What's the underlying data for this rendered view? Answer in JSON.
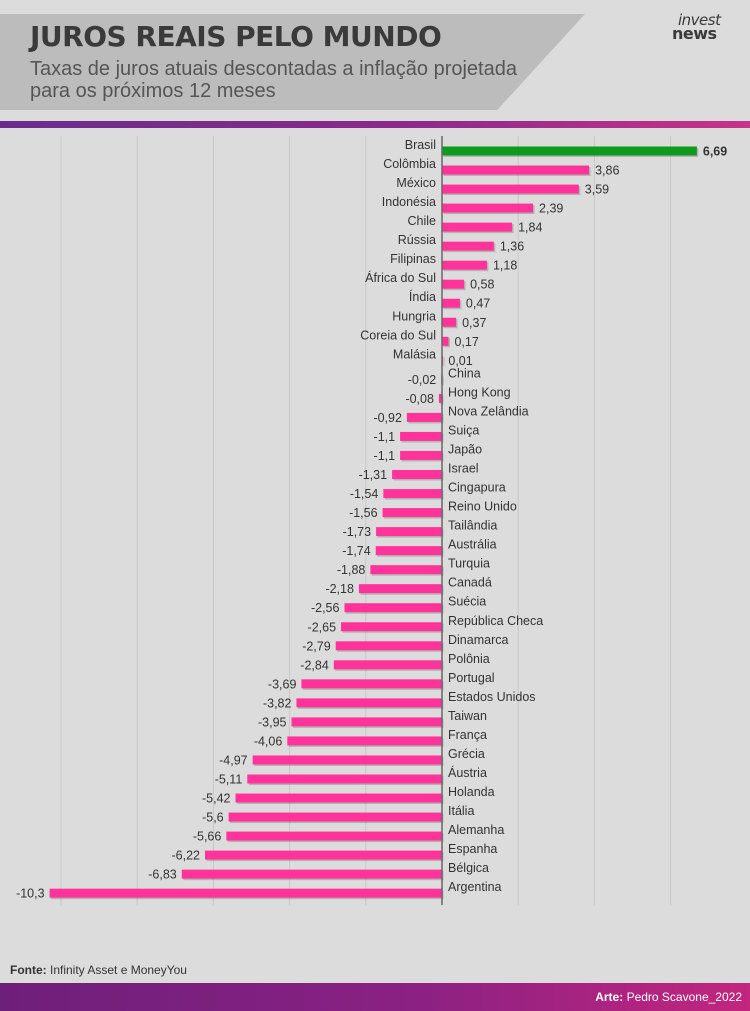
{
  "header": {
    "title": "JUROS REAIS PELO MUNDO",
    "subtitle": "Taxas de juros atuais descontadas a inflação projetada para os próximos 12 meses",
    "logo_top": "invest",
    "logo_bottom": "news"
  },
  "footer": {
    "source_label": "Fonte:",
    "source_text": "Infinity Asset e MoneyYou",
    "credit_label": "Arte:",
    "credit_text": "Pedro Scavone_2022"
  },
  "colors": {
    "highlight_bar": "#0f9a1f",
    "bar": "#ff3399",
    "axis": "#666666",
    "grid": "#c8c8c8",
    "label": "#333333"
  },
  "chart_data": {
    "type": "bar",
    "orientation": "horizontal",
    "title": "JUROS REAIS PELO MUNDO",
    "subtitle": "Taxas de juros atuais descontadas a inflação projetada para os próximos 12 meses",
    "xlabel": "",
    "ylabel": "",
    "xlim": [
      -10.3,
      6.69
    ],
    "grid": true,
    "highlight": "Brasil",
    "categories": [
      "Brasil",
      "Colômbia",
      "México",
      "Indonésia",
      "Chile",
      "Rússia",
      "Filipinas",
      "África do Sul",
      "Índia",
      "Hungria",
      "Coreia do Sul",
      "Malásia",
      "China",
      "Hong Kong",
      "Nova Zelândia",
      "Suiça",
      "Japão",
      "Israel",
      "Cingapura",
      "Reino Unido",
      "Tailândia",
      "Austrália",
      "Turquia",
      "Canadá",
      "Suécia",
      "República Checa",
      "Dinamarca",
      "Polônia",
      "Portugal",
      "Estados Unidos",
      "Taiwan",
      "França",
      "Grécia",
      "Áustria",
      "Holanda",
      "Itália",
      "Alemanha",
      "Espanha",
      "Bélgica",
      "Argentina"
    ],
    "values": [
      6.69,
      3.86,
      3.59,
      2.39,
      1.84,
      1.36,
      1.18,
      0.58,
      0.47,
      0.37,
      0.17,
      0.01,
      -0.02,
      -0.08,
      -0.92,
      -1.1,
      -1.1,
      -1.31,
      -1.54,
      -1.56,
      -1.73,
      -1.74,
      -1.88,
      -2.18,
      -2.56,
      -2.65,
      -2.79,
      -2.84,
      -3.69,
      -3.82,
      -3.95,
      -4.06,
      -4.97,
      -5.11,
      -5.42,
      -5.6,
      -5.66,
      -6.22,
      -6.83,
      -10.3
    ],
    "value_labels": [
      "6,69",
      "3,86",
      "3,59",
      "2,39",
      "1,84",
      "1,36",
      "1,18",
      "0,58",
      "0,47",
      "0,37",
      "0,17",
      "0,01",
      "-0,02",
      "-0,08",
      "-0,92",
      "-1,1",
      "-1,1",
      "-1,31",
      "-1,54",
      "-1,56",
      "-1,73",
      "-1,74",
      "-1,88",
      "-2,18",
      "-2,56",
      "-2,65",
      "-2,79",
      "-2,84",
      "-3,69",
      "-3,82",
      "-3,95",
      "-4,06",
      "-4,97",
      "-5,11",
      "-5,42",
      "-5,6",
      "-5,66",
      "-6,22",
      "-6,83",
      "-10,3"
    ]
  }
}
